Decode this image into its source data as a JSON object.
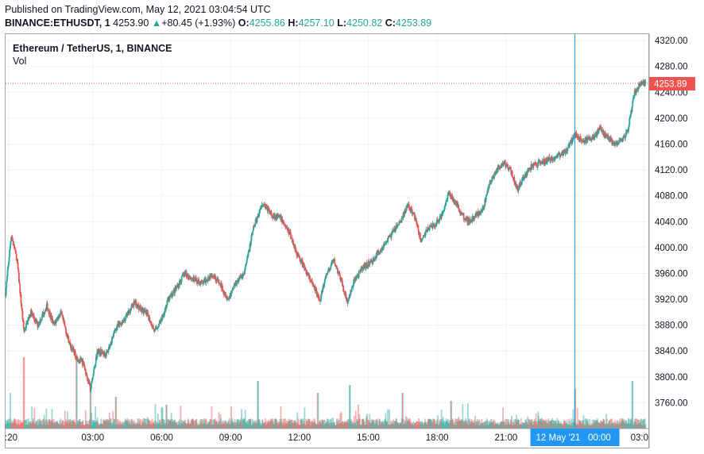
{
  "header": {
    "published": "Published on TradingView.com, May 12, 2021 03:04:54 UTC",
    "symbol": "BINANCE:ETHUSDT, 1",
    "price": "4253.90",
    "arrow": "▲",
    "change": "+80.45 (+1.93%)",
    "o_label": "O:",
    "o_value": "4255.86",
    "h_label": "H:",
    "h_value": "4257.10",
    "l_label": "L:",
    "l_value": "4250.82",
    "c_label": "C:",
    "c_value": "4253.89"
  },
  "legend": {
    "title": "Ethereum / TetherUS, 1, BINANCE",
    "volume": "Vol"
  },
  "colors": {
    "up": "#26a69a",
    "down": "#ef5350",
    "crosshair": "#2196f3",
    "price_tag": "#ef5350"
  },
  "chart_data": {
    "type": "candlestick",
    "y_ticks": [
      3760,
      3800,
      3840,
      3880,
      3920,
      3960,
      4000,
      4040,
      4080,
      4120,
      4160,
      4200,
      4240,
      4280,
      4320
    ],
    "y_tick_labels": [
      "3760.00",
      "3800.00",
      "3840.00",
      "3880.00",
      "3920.00",
      "3960.00",
      "4000.00",
      "4040.00",
      "4080.00",
      "4120.00",
      "4160.00",
      "4200.00",
      "4240.00",
      "4280.00",
      "4320.00"
    ],
    "ylim": [
      3720,
      4330
    ],
    "x_ticks": [
      ":20",
      "03:00",
      "06:00",
      "09:00",
      "12:00",
      "15:00",
      "18:00",
      "21:00",
      "00:00",
      "03:0"
    ],
    "x_tick_hours": [
      -0.67,
      3,
      6,
      9,
      12,
      15,
      18,
      21,
      24,
      27
    ],
    "xlim_hours": [
      -0.8,
      27.2
    ],
    "crosshair_label": "12 May '21   00:00",
    "crosshair_hour": 24,
    "last_price": 4253.89,
    "last_price_label": "4253.89",
    "price_path": [
      {
        "h": -0.8,
        "p": 3930
      },
      {
        "h": -0.55,
        "p": 4020
      },
      {
        "h": -0.3,
        "p": 3980
      },
      {
        "h": 0.0,
        "p": 3870
      },
      {
        "h": 0.3,
        "p": 3900
      },
      {
        "h": 0.6,
        "p": 3880
      },
      {
        "h": 1.0,
        "p": 3910
      },
      {
        "h": 1.3,
        "p": 3880
      },
      {
        "h": 1.6,
        "p": 3900
      },
      {
        "h": 2.0,
        "p": 3850
      },
      {
        "h": 2.3,
        "p": 3830
      },
      {
        "h": 2.6,
        "p": 3820
      },
      {
        "h": 2.9,
        "p": 3780
      },
      {
        "h": 3.2,
        "p": 3840
      },
      {
        "h": 3.6,
        "p": 3835
      },
      {
        "h": 4.0,
        "p": 3875
      },
      {
        "h": 4.4,
        "p": 3890
      },
      {
        "h": 4.8,
        "p": 3915
      },
      {
        "h": 5.1,
        "p": 3905
      },
      {
        "h": 5.4,
        "p": 3895
      },
      {
        "h": 5.7,
        "p": 3870
      },
      {
        "h": 6.0,
        "p": 3890
      },
      {
        "h": 6.3,
        "p": 3920
      },
      {
        "h": 6.6,
        "p": 3935
      },
      {
        "h": 7.0,
        "p": 3960
      },
      {
        "h": 7.4,
        "p": 3950
      },
      {
        "h": 7.8,
        "p": 3945
      },
      {
        "h": 8.2,
        "p": 3960
      },
      {
        "h": 8.6,
        "p": 3940
      },
      {
        "h": 8.9,
        "p": 3920
      },
      {
        "h": 9.2,
        "p": 3945
      },
      {
        "h": 9.6,
        "p": 3960
      },
      {
        "h": 10.0,
        "p": 4030
      },
      {
        "h": 10.4,
        "p": 4070
      },
      {
        "h": 10.8,
        "p": 4050
      },
      {
        "h": 11.2,
        "p": 4045
      },
      {
        "h": 11.6,
        "p": 4020
      },
      {
        "h": 11.9,
        "p": 3990
      },
      {
        "h": 12.2,
        "p": 3970
      },
      {
        "h": 12.6,
        "p": 3940
      },
      {
        "h": 12.9,
        "p": 3920
      },
      {
        "h": 13.2,
        "p": 3960
      },
      {
        "h": 13.5,
        "p": 3980
      },
      {
        "h": 13.8,
        "p": 3950
      },
      {
        "h": 14.1,
        "p": 3915
      },
      {
        "h": 14.4,
        "p": 3950
      },
      {
        "h": 14.8,
        "p": 3970
      },
      {
        "h": 15.2,
        "p": 3980
      },
      {
        "h": 15.6,
        "p": 4000
      },
      {
        "h": 16.0,
        "p": 4020
      },
      {
        "h": 16.4,
        "p": 4040
      },
      {
        "h": 16.7,
        "p": 4065
      },
      {
        "h": 17.0,
        "p": 4050
      },
      {
        "h": 17.3,
        "p": 4010
      },
      {
        "h": 17.6,
        "p": 4030
      },
      {
        "h": 17.9,
        "p": 4035
      },
      {
        "h": 18.2,
        "p": 4050
      },
      {
        "h": 18.5,
        "p": 4085
      },
      {
        "h": 18.8,
        "p": 4070
      },
      {
        "h": 19.1,
        "p": 4050
      },
      {
        "h": 19.4,
        "p": 4040
      },
      {
        "h": 19.7,
        "p": 4050
      },
      {
        "h": 20.0,
        "p": 4060
      },
      {
        "h": 20.3,
        "p": 4100
      },
      {
        "h": 20.6,
        "p": 4120
      },
      {
        "h": 20.9,
        "p": 4130
      },
      {
        "h": 21.2,
        "p": 4120
      },
      {
        "h": 21.5,
        "p": 4090
      },
      {
        "h": 21.8,
        "p": 4110
      },
      {
        "h": 22.1,
        "p": 4125
      },
      {
        "h": 22.4,
        "p": 4130
      },
      {
        "h": 22.8,
        "p": 4135
      },
      {
        "h": 23.2,
        "p": 4140
      },
      {
        "h": 23.6,
        "p": 4150
      },
      {
        "h": 24.0,
        "p": 4175
      },
      {
        "h": 24.4,
        "p": 4165
      },
      {
        "h": 24.8,
        "p": 4170
      },
      {
        "h": 25.1,
        "p": 4185
      },
      {
        "h": 25.4,
        "p": 4170
      },
      {
        "h": 25.7,
        "p": 4160
      },
      {
        "h": 26.0,
        "p": 4165
      },
      {
        "h": 26.3,
        "p": 4180
      },
      {
        "h": 26.6,
        "p": 4240
      },
      {
        "h": 26.9,
        "p": 4255
      },
      {
        "h": 27.2,
        "p": 4254
      }
    ],
    "volume_spikes": [
      {
        "h": -0.6,
        "v": 0.45
      },
      {
        "h": 0.0,
        "v": 0.9
      },
      {
        "h": 2.3,
        "v": 0.85
      },
      {
        "h": 2.9,
        "v": 0.55
      },
      {
        "h": 4.0,
        "v": 0.4
      },
      {
        "h": 6.2,
        "v": 0.3
      },
      {
        "h": 10.2,
        "v": 0.6
      },
      {
        "h": 12.8,
        "v": 0.45
      },
      {
        "h": 14.2,
        "v": 0.55
      },
      {
        "h": 16.5,
        "v": 0.45
      },
      {
        "h": 18.6,
        "v": 0.35
      },
      {
        "h": 24.0,
        "v": 0.5
      },
      {
        "h": 26.5,
        "v": 0.6
      }
    ]
  }
}
